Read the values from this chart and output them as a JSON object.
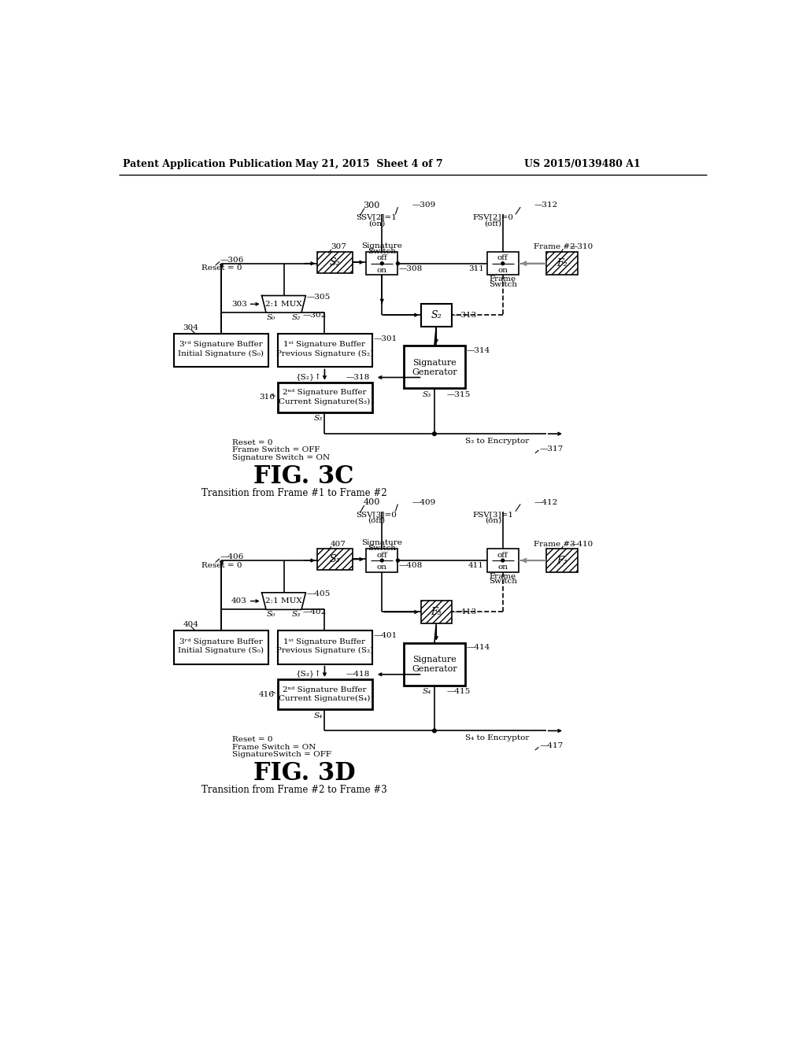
{
  "bg_color": "#ffffff",
  "header_left": "Patent Application Publication",
  "header_mid": "May 21, 2015  Sheet 4 of 7",
  "header_right": "US 2015/0139480 A1"
}
